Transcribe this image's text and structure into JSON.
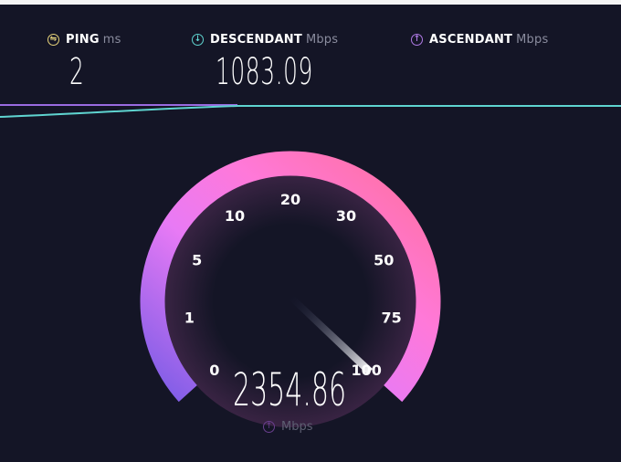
{
  "metrics": {
    "ping": {
      "label": "PING",
      "unit": "ms",
      "value": "2",
      "icon": "ping-icon",
      "color": "#e6d27a"
    },
    "download": {
      "label": "DESCENDANT",
      "unit": "Mbps",
      "value": "1083.09",
      "icon": "download-arrow-icon",
      "color": "#5fd4d0"
    },
    "upload": {
      "label": "ASCENDANT",
      "unit": "Mbps",
      "value": "",
      "icon": "upload-arrow-icon",
      "color": "#b07ae6"
    }
  },
  "gauge": {
    "ticks": [
      "0",
      "1",
      "5",
      "10",
      "20",
      "30",
      "50",
      "75",
      "100"
    ],
    "current_value": "2354.86",
    "unit": "Mbps",
    "unit_icon": "upload-arrow-icon",
    "needle_position": 1.0,
    "gradient_colors": [
      "#7b5ce6",
      "#e87af5",
      "#ff79d9",
      "#ff6f9c"
    ]
  }
}
